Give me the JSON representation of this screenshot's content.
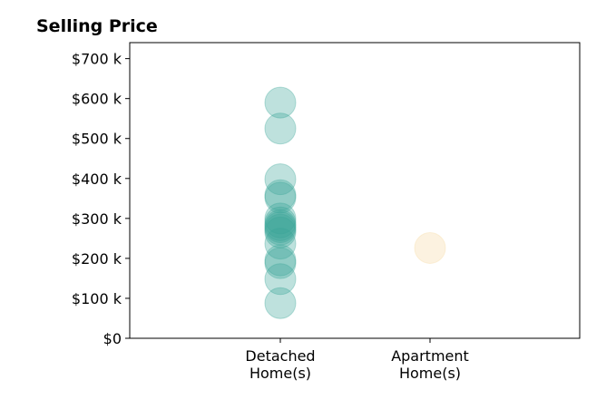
{
  "chart_data": {
    "type": "scatter",
    "title": "Selling Price",
    "categories": [
      "Detached\nHome(s)",
      "Apartment\nHome(s)"
    ],
    "y_ticks": [
      "$0",
      "$100 k",
      "$200 k",
      "$300 k",
      "$400 k",
      "$500 k",
      "$600 k",
      "$700 k"
    ],
    "y_tick_values": [
      0,
      100000,
      200000,
      300000,
      400000,
      500000,
      600000,
      700000
    ],
    "ylim": [
      0,
      740000
    ],
    "grid": false,
    "series": [
      {
        "category_index": 0,
        "color": "#3aa597",
        "values": [
          590000,
          525000,
          398000,
          358000,
          352000,
          300000,
          290000,
          283000,
          278000,
          272000,
          265000,
          237000,
          195000,
          188000,
          148000,
          88000
        ]
      },
      {
        "category_index": 1,
        "color": "#f5d9a0",
        "values": [
          226000
        ]
      }
    ]
  }
}
